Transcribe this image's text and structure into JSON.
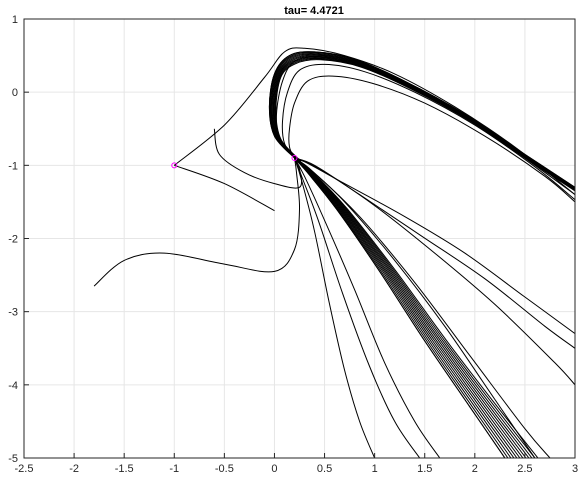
{
  "chart_data": {
    "type": "line",
    "title": "tau= 4.4721",
    "xlabel": "",
    "ylabel": "",
    "xlim": [
      -2.5,
      3
    ],
    "ylim": [
      -5,
      1
    ],
    "xticks": [
      "-2.5",
      "-2",
      "-1.5",
      "-1",
      "-0.5",
      "0",
      "0.5",
      "1",
      "1.5",
      "2",
      "2.5",
      "3"
    ],
    "yticks": [
      "1",
      "0",
      "-1",
      "-2",
      "-3",
      "-4",
      "-5"
    ],
    "xtick_values": [
      -2.5,
      -2,
      -1.5,
      -1,
      -0.5,
      0,
      0.5,
      1,
      1.5,
      2,
      2.5,
      3
    ],
    "ytick_values": [
      1,
      0,
      -1,
      -2,
      -3,
      -4,
      -5
    ],
    "grid": true,
    "line_color": "#000000",
    "marker_color": "#ff00ff",
    "markers": [
      {
        "x": -1.0,
        "y": -1.0
      },
      {
        "x": 0.2,
        "y": -0.9
      }
    ],
    "series": [
      {
        "points": [
          [
            -1.0,
            -1.0
          ],
          [
            -0.5,
            -0.45
          ],
          [
            -0.1,
            0.2
          ],
          [
            0.1,
            0.55
          ],
          [
            0.3,
            0.6
          ],
          [
            0.7,
            0.5
          ],
          [
            1.2,
            0.25
          ],
          [
            1.8,
            -0.2
          ],
          [
            2.4,
            -0.75
          ],
          [
            3.0,
            -1.4
          ]
        ]
      },
      {
        "points": [
          [
            -1.0,
            -1.0
          ],
          [
            -0.5,
            -1.25
          ],
          [
            0.0,
            -1.62
          ]
        ]
      },
      {
        "points": [
          [
            -0.6,
            -0.5
          ],
          [
            -0.55,
            -0.85
          ],
          [
            -0.3,
            -1.1
          ],
          [
            0.0,
            -1.25
          ],
          [
            0.25,
            -1.3
          ],
          [
            0.25,
            -1.05
          ],
          [
            0.2,
            -0.9
          ]
        ]
      },
      {
        "points": [
          [
            -1.8,
            -2.65
          ],
          [
            -1.5,
            -2.3
          ],
          [
            -1.1,
            -2.2
          ],
          [
            -0.5,
            -2.35
          ],
          [
            0.0,
            -2.45
          ],
          [
            0.2,
            -2.15
          ],
          [
            0.25,
            -1.6
          ],
          [
            0.22,
            -1.1
          ],
          [
            0.2,
            -0.9
          ]
        ]
      },
      {
        "points": [
          [
            0.2,
            -0.9
          ],
          [
            0.0,
            -0.6
          ],
          [
            -0.05,
            -0.2
          ],
          [
            0.0,
            0.25
          ],
          [
            0.15,
            0.5
          ],
          [
            0.4,
            0.55
          ],
          [
            0.8,
            0.45
          ],
          [
            1.3,
            0.15
          ],
          [
            1.9,
            -0.3
          ],
          [
            2.5,
            -0.85
          ],
          [
            3.0,
            -1.3
          ]
        ]
      },
      {
        "points": [
          [
            0.2,
            -0.9
          ],
          [
            0.05,
            -0.65
          ],
          [
            0.02,
            -0.3
          ],
          [
            0.08,
            0.15
          ],
          [
            0.2,
            0.42
          ],
          [
            0.45,
            0.48
          ],
          [
            0.85,
            0.38
          ],
          [
            1.35,
            0.08
          ],
          [
            1.95,
            -0.38
          ],
          [
            2.55,
            -0.95
          ],
          [
            3.0,
            -1.4
          ]
        ]
      },
      {
        "points": [
          [
            0.2,
            -0.9
          ],
          [
            0.1,
            -0.7
          ],
          [
            0.08,
            -0.4
          ],
          [
            0.13,
            0.0
          ],
          [
            0.25,
            0.3
          ],
          [
            0.5,
            0.38
          ],
          [
            0.9,
            0.28
          ],
          [
            1.4,
            0.0
          ],
          [
            2.0,
            -0.45
          ],
          [
            2.6,
            -1.02
          ],
          [
            3.0,
            -1.47
          ]
        ]
      },
      {
        "points": [
          [
            0.2,
            -0.9
          ],
          [
            0.15,
            -0.75
          ],
          [
            0.15,
            -0.5
          ],
          [
            0.2,
            -0.15
          ],
          [
            0.33,
            0.15
          ],
          [
            0.58,
            0.22
          ],
          [
            0.98,
            0.12
          ],
          [
            1.5,
            -0.15
          ],
          [
            2.1,
            -0.6
          ],
          [
            2.7,
            -1.15
          ],
          [
            3.0,
            -1.5
          ]
        ]
      },
      {
        "points": [
          [
            0.2,
            -0.9
          ],
          [
            0.3,
            -0.95
          ],
          [
            0.7,
            -1.25
          ],
          [
            1.3,
            -1.7
          ],
          [
            1.9,
            -2.2
          ],
          [
            2.5,
            -2.8
          ],
          [
            3.0,
            -3.3
          ]
        ]
      },
      {
        "points": [
          [
            0.2,
            -0.9
          ],
          [
            0.35,
            -1.05
          ],
          [
            0.7,
            -1.5
          ],
          [
            1.2,
            -2.3
          ],
          [
            1.7,
            -3.2
          ],
          [
            2.2,
            -4.2
          ],
          [
            2.6,
            -5.0
          ]
        ]
      },
      {
        "points": [
          [
            0.2,
            -0.9
          ],
          [
            0.33,
            -1.1
          ],
          [
            0.62,
            -1.6
          ],
          [
            1.05,
            -2.45
          ],
          [
            1.5,
            -3.4
          ],
          [
            1.95,
            -4.3
          ],
          [
            2.3,
            -5.0
          ]
        ]
      },
      {
        "points": [
          [
            0.2,
            -0.9
          ],
          [
            0.3,
            -1.15
          ],
          [
            0.5,
            -1.75
          ],
          [
            0.8,
            -2.7
          ],
          [
            1.1,
            -3.7
          ],
          [
            1.4,
            -4.5
          ],
          [
            1.65,
            -5.0
          ]
        ]
      },
      {
        "points": [
          [
            0.2,
            -0.9
          ],
          [
            0.27,
            -1.2
          ],
          [
            0.4,
            -1.9
          ],
          [
            0.55,
            -2.9
          ],
          [
            0.7,
            -3.8
          ],
          [
            0.85,
            -4.5
          ],
          [
            1.0,
            -5.0
          ]
        ]
      },
      {
        "points": [
          [
            0.2,
            -0.9
          ],
          [
            0.28,
            -1.18
          ],
          [
            0.45,
            -1.8
          ],
          [
            0.68,
            -2.75
          ],
          [
            0.95,
            -3.75
          ],
          [
            1.2,
            -4.5
          ],
          [
            1.45,
            -5.0
          ]
        ]
      },
      {
        "points": [
          [
            0.2,
            -0.9
          ],
          [
            0.4,
            -1.0
          ],
          [
            0.85,
            -1.4
          ],
          [
            1.45,
            -1.95
          ],
          [
            2.1,
            -2.55
          ],
          [
            2.7,
            -3.2
          ],
          [
            3.0,
            -3.5
          ]
        ]
      },
      {
        "points": [
          [
            0.2,
            -0.9
          ],
          [
            0.45,
            -1.05
          ],
          [
            1.0,
            -1.55
          ],
          [
            1.6,
            -2.2
          ],
          [
            2.2,
            -2.9
          ],
          [
            2.8,
            -3.7
          ],
          [
            3.0,
            -4.0
          ]
        ]
      },
      {
        "points": [
          [
            0.2,
            -0.9
          ],
          [
            0.38,
            -1.08
          ],
          [
            0.85,
            -1.7
          ],
          [
            1.4,
            -2.6
          ],
          [
            1.95,
            -3.6
          ],
          [
            2.5,
            -4.6
          ],
          [
            2.75,
            -5.0
          ]
        ]
      }
    ]
  }
}
